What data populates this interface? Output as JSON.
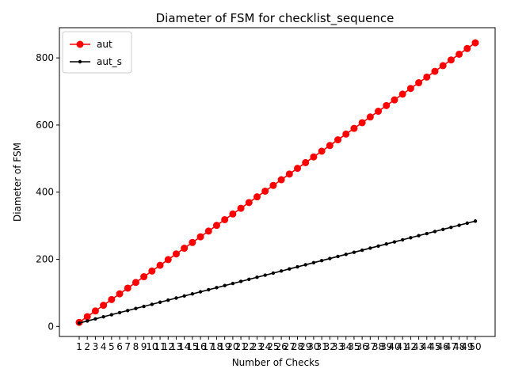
{
  "chart_data": {
    "type": "line",
    "title": "Diameter of FSM for checklist_sequence",
    "xlabel": "Number of Checks",
    "ylabel": "Diameter of FSM",
    "x": [
      1,
      2,
      3,
      4,
      5,
      6,
      7,
      8,
      9,
      10,
      11,
      12,
      13,
      14,
      15,
      16,
      17,
      18,
      19,
      20,
      21,
      22,
      23,
      24,
      25,
      26,
      27,
      28,
      29,
      30,
      31,
      32,
      33,
      34,
      35,
      36,
      37,
      38,
      39,
      40,
      41,
      42,
      43,
      44,
      45,
      46,
      47,
      48,
      49,
      50
    ],
    "xticks": [
      "1",
      "2",
      "3",
      "4",
      "5",
      "6",
      "7",
      "8",
      "9",
      "10",
      "11",
      "12",
      "13",
      "14",
      "15",
      "16",
      "17",
      "18",
      "19",
      "20",
      "21",
      "22",
      "23",
      "24",
      "25",
      "26",
      "27",
      "28",
      "29",
      "30",
      "31",
      "32",
      "33",
      "34",
      "35",
      "36",
      "37",
      "38",
      "39",
      "40",
      "41",
      "42",
      "43",
      "44",
      "45",
      "46",
      "47",
      "48",
      "49",
      "50"
    ],
    "xlim": [
      -1.45,
      52.45
    ],
    "yticks": [
      0,
      200,
      400,
      600,
      800
    ],
    "ylim": [
      -30,
      890
    ],
    "grid": false,
    "legend_position": "top-left",
    "series": [
      {
        "name": "aut",
        "color": "#ff0000",
        "marker": "large-circle",
        "values": [
          12,
          29,
          46,
          63,
          80,
          97,
          114,
          131,
          148,
          165,
          182,
          199,
          216,
          233,
          250,
          267,
          284,
          301,
          318,
          335,
          352,
          369,
          386,
          403,
          420,
          437,
          454,
          471,
          488,
          505,
          522,
          539,
          556,
          573,
          590,
          607,
          624,
          641,
          658,
          675,
          692,
          709,
          726,
          743,
          760,
          777,
          794,
          811,
          828,
          845
        ]
      },
      {
        "name": "aut_s",
        "color": "#000000",
        "marker": "small-dot",
        "values": [
          10,
          16.2,
          22.4,
          28.6,
          34.8,
          41,
          47.2,
          53.4,
          59.6,
          65.8,
          72,
          78.2,
          84.4,
          90.6,
          96.8,
          103,
          109.2,
          115.4,
          121.6,
          127.8,
          134,
          140.2,
          146.4,
          152.6,
          158.8,
          165,
          171.2,
          177.4,
          183.6,
          189.8,
          196,
          202.2,
          208.4,
          214.6,
          220.8,
          227,
          233.2,
          239.4,
          245.6,
          251.8,
          258,
          264.2,
          270.4,
          276.6,
          282.8,
          289,
          295.2,
          301.4,
          307.6,
          313.8
        ]
      }
    ]
  }
}
